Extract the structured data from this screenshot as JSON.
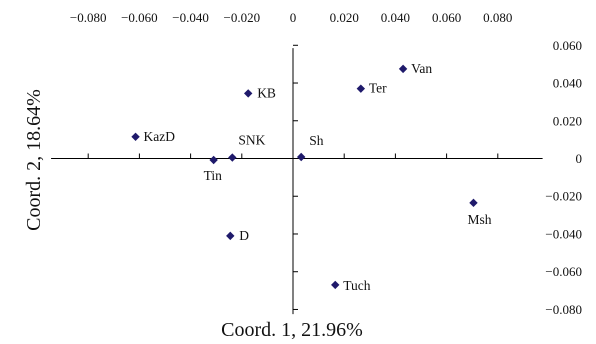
{
  "chart_data": {
    "type": "scatter",
    "xlabel": "Coord. 1, 21.96%",
    "ylabel": "Coord. 2, 18.64%",
    "xlim": [
      -0.08,
      0.08
    ],
    "ylim": [
      -0.08,
      0.06
    ],
    "x_ticks": [
      "−0.080",
      "−0.060",
      "−0.040",
      "−0.020",
      "0",
      "0.020",
      "0.040",
      "0.060",
      "0.080"
    ],
    "y_ticks": [
      "0.060",
      "0.040",
      "0.020",
      "0",
      "−0.020",
      "−0.040",
      "−0.060",
      "−0.080"
    ],
    "marker_color": "#1f1a6b",
    "points": [
      {
        "label": "KazD",
        "x": -0.0615,
        "y": 0.0115
      },
      {
        "label": "KB",
        "x": -0.0175,
        "y": 0.0345
      },
      {
        "label": "Van",
        "x": 0.043,
        "y": 0.0475
      },
      {
        "label": "Ter",
        "x": 0.0265,
        "y": 0.037
      },
      {
        "label": "SNK",
        "x": -0.0237,
        "y": 0.0005
      },
      {
        "label": "Tin",
        "x": -0.031,
        "y": -0.0008
      },
      {
        "label": "Sh",
        "x": 0.0032,
        "y": 0.0008
      },
      {
        "label": "Msh",
        "x": 0.0705,
        "y": -0.0235
      },
      {
        "label": "D",
        "x": -0.0245,
        "y": -0.041
      },
      {
        "label": "Tuch",
        "x": 0.0165,
        "y": -0.067
      }
    ]
  }
}
